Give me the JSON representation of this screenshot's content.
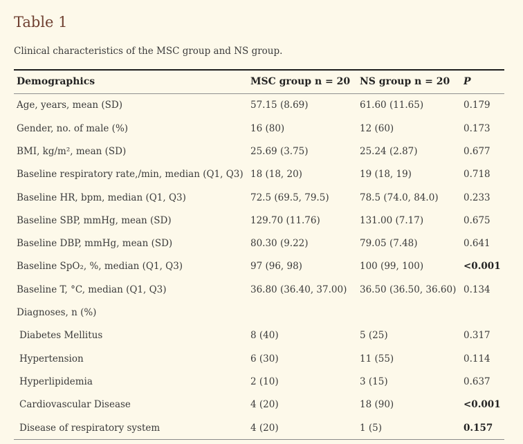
{
  "colors": {
    "page_background": "#fdf9ea",
    "title_text": "#6f4031",
    "body_text": "#3a3a3a",
    "header_text": "#232323",
    "top_rule": "#1b1b1b",
    "inner_rule": "#8f8f8f",
    "bottom_rule": "#8a8a8a"
  },
  "table": {
    "title": "Table 1",
    "caption": "Clinical characteristics of the MSC group and NS group.",
    "columns": {
      "demographics": "Demographics",
      "msc": "MSC group n = 20",
      "ns": "NS group n = 20",
      "p": "P"
    },
    "rows": [
      {
        "label": "Age, years, mean (SD)",
        "msc": "57.15 (8.69)",
        "ns": "61.60 (11.65)",
        "p": "0.179",
        "p_bold": false,
        "indent": false
      },
      {
        "label": "Gender, no. of male (%)",
        "msc": "16 (80)",
        "ns": "12 (60)",
        "p": "0.173",
        "p_bold": false,
        "indent": false
      },
      {
        "label": "BMI, kg/m², mean (SD)",
        "msc": "25.69 (3.75)",
        "ns": "25.24 (2.87)",
        "p": "0.677",
        "p_bold": false,
        "indent": false
      },
      {
        "label": "Baseline respiratory rate,/min, median (Q1, Q3)",
        "msc": "18 (18, 20)",
        "ns": "19 (18, 19)",
        "p": "0.718",
        "p_bold": false,
        "indent": false
      },
      {
        "label": "Baseline HR, bpm, median (Q1, Q3)",
        "msc": "72.5 (69.5, 79.5)",
        "ns": "78.5 (74.0, 84.0)",
        "p": "0.233",
        "p_bold": false,
        "indent": false
      },
      {
        "label": "Baseline SBP, mmHg, mean (SD)",
        "msc": "129.70 (11.76)",
        "ns": "131.00 (7.17)",
        "p": "0.675",
        "p_bold": false,
        "indent": false
      },
      {
        "label": "Baseline DBP, mmHg, mean (SD)",
        "msc": "80.30 (9.22)",
        "ns": "79.05 (7.48)",
        "p": "0.641",
        "p_bold": false,
        "indent": false
      },
      {
        "label": "Baseline SpO₂, %, median (Q1, Q3)",
        "msc": "97 (96, 98)",
        "ns": "100 (99, 100)",
        "p": "<0.001",
        "p_bold": true,
        "indent": false
      },
      {
        "label": "Baseline T, °C, median (Q1, Q3)",
        "msc": "36.80 (36.40, 37.00)",
        "ns": "36.50 (36.50, 36.60)",
        "p": "0.134",
        "p_bold": false,
        "indent": false
      },
      {
        "label": "Diagnoses, n (%)",
        "msc": "",
        "ns": "",
        "p": "",
        "p_bold": false,
        "indent": false
      },
      {
        "label": "Diabetes Mellitus",
        "msc": "8 (40)",
        "ns": "5 (25)",
        "p": "0.317",
        "p_bold": false,
        "indent": true
      },
      {
        "label": "Hypertension",
        "msc": "6 (30)",
        "ns": "11 (55)",
        "p": "0.114",
        "p_bold": false,
        "indent": true
      },
      {
        "label": "Hyperlipidemia",
        "msc": "2 (10)",
        "ns": "3 (15)",
        "p": "0.637",
        "p_bold": false,
        "indent": true
      },
      {
        "label": "Cardiovascular Disease",
        "msc": "4 (20)",
        "ns": "18 (90)",
        "p": "<0.001",
        "p_bold": true,
        "indent": true
      },
      {
        "label": "Disease of respiratory system",
        "msc": "4 (20)",
        "ns": "1 (5)",
        "p": "0.157",
        "p_bold": true,
        "indent": true
      }
    ]
  }
}
